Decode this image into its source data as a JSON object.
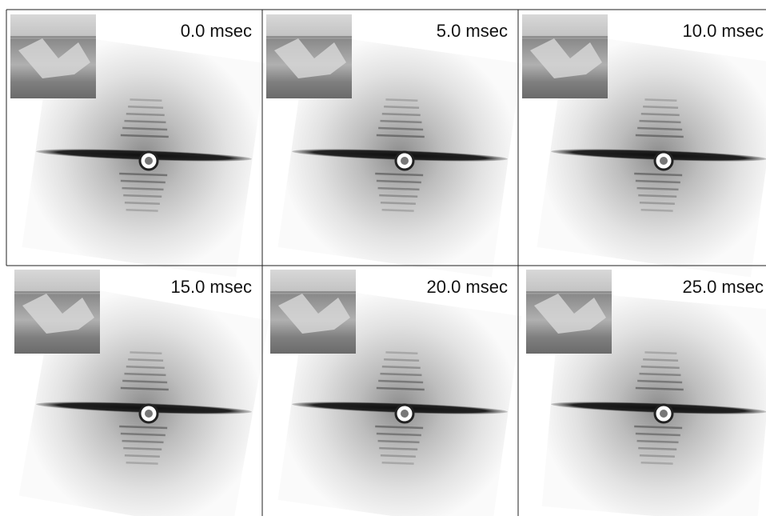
{
  "panels": [
    {
      "label": "0.0 msec"
    },
    {
      "label": "5.0 msec"
    },
    {
      "label": "10.0 msec"
    },
    {
      "label": "15.0 msec"
    },
    {
      "label": "20.0 msec"
    },
    {
      "label": "25.0 msec"
    }
  ]
}
